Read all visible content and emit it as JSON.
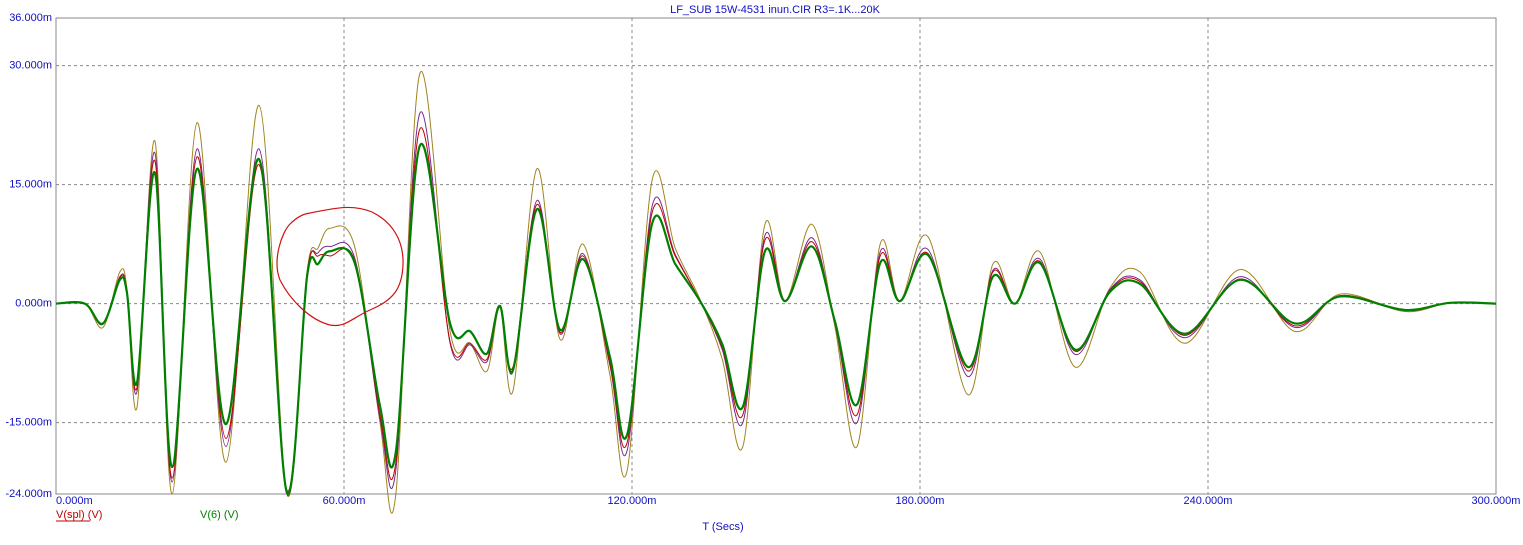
{
  "chart_data": {
    "type": "line",
    "title": "LF_SUB 15W-4531 inun.CIR R3=.1K...20K",
    "xlabel": "T (Secs)",
    "x": [
      0,
      0.006,
      0.0098,
      0.0133,
      0.0148,
      0.0169,
      0.0206,
      0.0242,
      0.0294,
      0.0354,
      0.0423,
      0.0481,
      0.0523,
      0.0546,
      0.0571,
      0.0623,
      0.0675,
      0.0708,
      0.0758,
      0.0821,
      0.0863,
      0.0898,
      0.0925,
      0.0952,
      0.1002,
      0.105,
      0.1098,
      0.1154,
      0.119,
      0.1242,
      0.129,
      0.1342,
      0.1388,
      0.1431,
      0.1477,
      0.1519,
      0.1575,
      0.1623,
      0.1669,
      0.1717,
      0.1758,
      0.1817,
      0.19,
      0.1952,
      0.1998,
      0.205,
      0.2123,
      0.2196,
      0.2258,
      0.2352,
      0.2467,
      0.2581,
      0.2675,
      0.281,
      0.2904,
      0.3
    ],
    "series": [
      {
        "color": "#a08420",
        "values": [
          0,
          0,
          -0.003,
          0.004,
          0.0018,
          -0.013,
          0.0205,
          -0.024,
          0.0228,
          -0.02,
          0.025,
          -0.024,
          0.004,
          0.007,
          0.0095,
          0.007,
          -0.015,
          -0.024,
          0.029,
          -0.0035,
          -0.005,
          -0.0085,
          -0.0005,
          -0.011,
          0.017,
          -0.0045,
          0.0075,
          -0.009,
          -0.021,
          0.0156,
          0.007,
          0.0005,
          -0.007,
          -0.018,
          0.01,
          0.0004,
          0.01,
          -0.003,
          -0.018,
          0.0075,
          0.0004,
          0.0084,
          -0.0115,
          0.005,
          0,
          0.0065,
          -0.008,
          0.002,
          0.004,
          -0.005,
          0.0043,
          -0.0035,
          0.0012,
          -0.001,
          0.0001,
          0
        ]
      },
      {
        "color": "#7a2a8a",
        "values": [
          0,
          0,
          -0.0026,
          0.0034,
          0.0015,
          -0.011,
          0.019,
          -0.0225,
          0.0195,
          -0.018,
          0.0195,
          -0.024,
          0.0036,
          0.0064,
          0.0072,
          0.0056,
          -0.0145,
          -0.021,
          0.024,
          -0.005,
          -0.0052,
          -0.0073,
          -0.0003,
          -0.0086,
          0.013,
          -0.0038,
          0.0063,
          -0.0078,
          -0.0185,
          0.0123,
          0.0062,
          0.0003,
          -0.0058,
          -0.015,
          0.0086,
          0.0003,
          0.0083,
          -0.0026,
          -0.015,
          0.0065,
          0.0003,
          0.0068,
          -0.0092,
          0.0042,
          0,
          0.0056,
          -0.0064,
          0.0018,
          0.003,
          -0.0043,
          0.0034,
          -0.003,
          0.001,
          -0.0009,
          0.0001,
          0
        ]
      },
      {
        "name": "V(spl) (V)",
        "color": "#c00000",
        "values": [
          0,
          0,
          -0.0025,
          0.0033,
          0.0014,
          -0.0105,
          0.018,
          -0.022,
          0.0185,
          -0.017,
          0.0175,
          -0.0235,
          0.0038,
          0.006,
          0.006,
          0.0053,
          -0.014,
          -0.02,
          0.022,
          -0.0048,
          -0.005,
          -0.007,
          -0.0004,
          -0.008,
          0.0125,
          -0.0036,
          0.006,
          -0.0075,
          -0.0175,
          0.0115,
          0.006,
          0.0003,
          -0.0055,
          -0.014,
          0.008,
          0.0003,
          0.0078,
          -0.0025,
          -0.014,
          0.006,
          0.0003,
          0.0063,
          -0.0085,
          0.004,
          0,
          0.0053,
          -0.006,
          0.0017,
          0.0028,
          -0.004,
          0.0031,
          -0.0028,
          0.001,
          -0.0008,
          0.0001,
          0
        ]
      },
      {
        "name": "V(6) (V)",
        "color": "#008000",
        "values": [
          0,
          0,
          -0.0025,
          0.003,
          0.0013,
          -0.0099,
          0.0165,
          -0.0206,
          0.017,
          -0.0152,
          0.0182,
          -0.0238,
          0.0034,
          0.005,
          0.0066,
          0.005,
          -0.0129,
          -0.0187,
          0.0199,
          -0.0025,
          -0.0035,
          -0.0063,
          -0.0003,
          -0.0084,
          0.0119,
          -0.0033,
          0.0056,
          -0.0067,
          -0.0165,
          0.0101,
          0.005,
          0.0003,
          -0.0051,
          -0.013,
          0.0066,
          0.0003,
          0.0072,
          -0.0023,
          -0.0127,
          0.0051,
          0.0003,
          0.0061,
          -0.008,
          0.0034,
          0,
          0.0051,
          -0.0058,
          0.0015,
          0.0025,
          -0.0038,
          0.003,
          -0.0025,
          0.0009,
          -0.0008,
          0.0001,
          0
        ]
      }
    ],
    "xlim": [
      0,
      0.3
    ],
    "ylim": [
      -0.024,
      0.036
    ],
    "xticks": [
      {
        "value": 0,
        "label": "0.000m"
      },
      {
        "value": 0.06,
        "label": "60.000m"
      },
      {
        "value": 0.12,
        "label": "120.000m"
      },
      {
        "value": 0.18,
        "label": "180.000m"
      },
      {
        "value": 0.24,
        "label": "240.000m"
      },
      {
        "value": 0.3,
        "label": "300.000m"
      }
    ],
    "yticks": [
      {
        "value": 0.036,
        "label": "36.000m"
      },
      {
        "value": 0.03,
        "label": "30.000m"
      },
      {
        "value": 0.015,
        "label": "15.000m"
      },
      {
        "value": 0,
        "label": "0.000m"
      },
      {
        "value": -0.015,
        "label": "-15.000m"
      },
      {
        "value": -0.024,
        "label": "-24.000m"
      }
    ],
    "grid": true,
    "legend": "bottom-left"
  }
}
